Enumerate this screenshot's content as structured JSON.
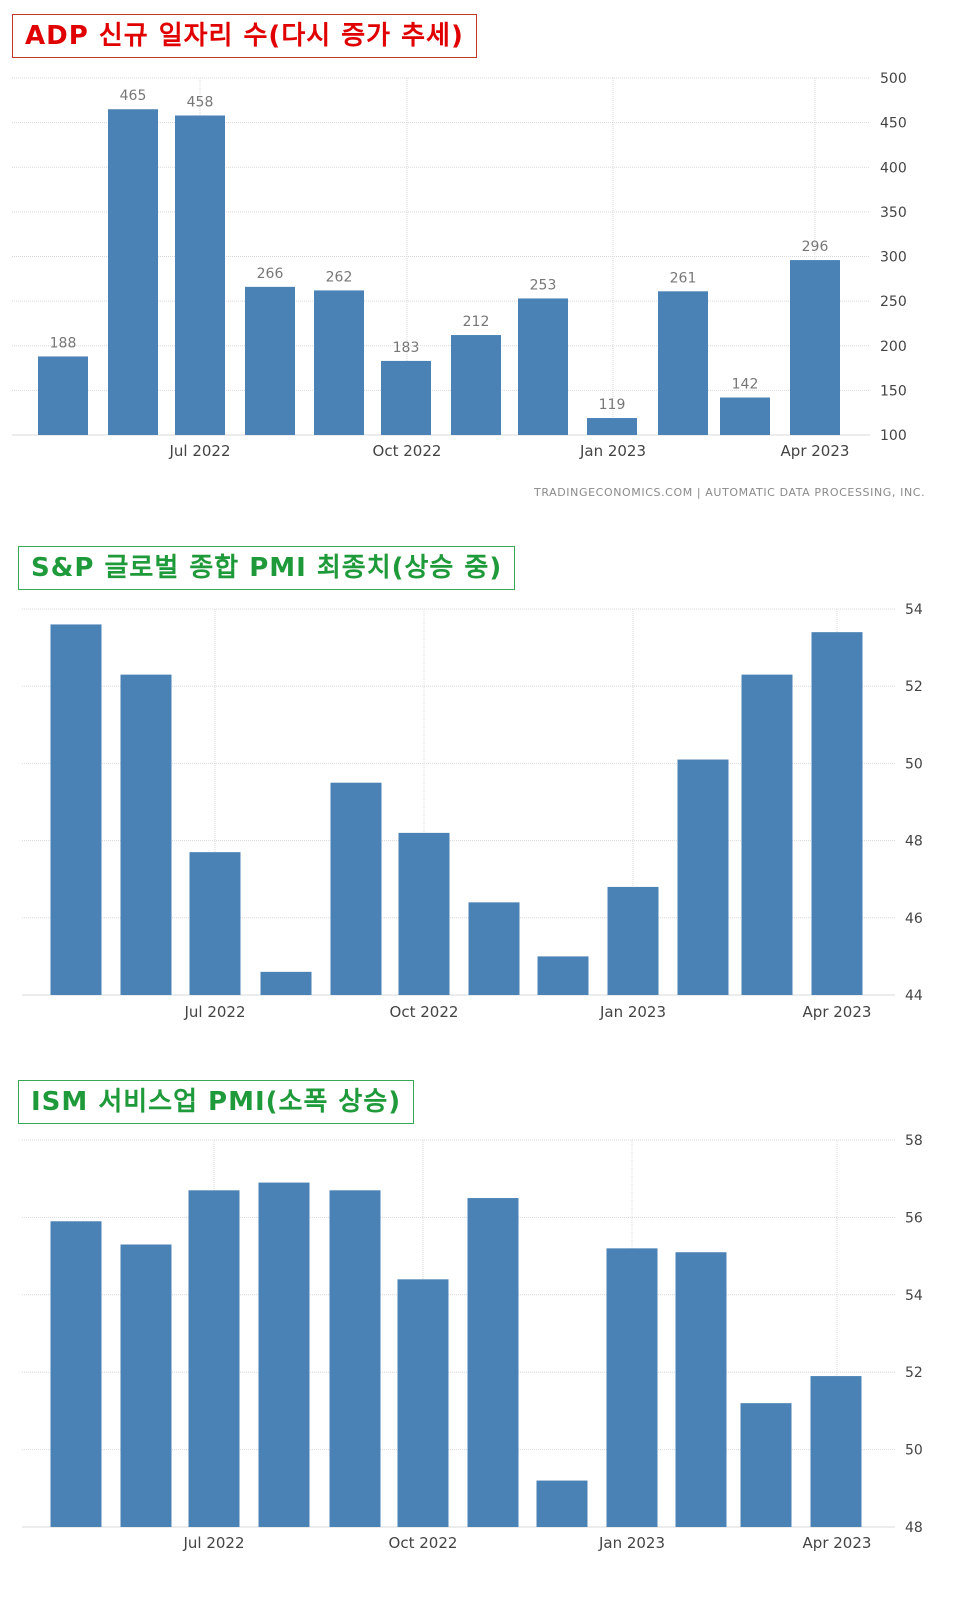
{
  "colors": {
    "bar": "#4a82b5",
    "grid": "#d9d9d9",
    "axis_text": "#444444",
    "label_text": "#777777",
    "title_red": "#e00000",
    "title_green": "#1f9a3a"
  },
  "source_note": "TRADINGECONOMICS.COM  |  AUTOMATIC DATA PROCESSING, INC.",
  "chart_data": [
    {
      "type": "bar",
      "title": "ADP 신규 일자리 수(다시 증가 추세)",
      "xticks": [
        "Jul 2022",
        "Oct 2022",
        "Jan 2023",
        "Apr 2023"
      ],
      "values": [
        188,
        465,
        458,
        266,
        262,
        183,
        212,
        253,
        119,
        261,
        142,
        296
      ],
      "data_labels": [
        "188",
        "465",
        "458",
        "266",
        "262",
        "183",
        "212",
        "253",
        "119",
        "261",
        "142",
        "296"
      ],
      "ylim": [
        100,
        500
      ],
      "yticks": [
        100,
        150,
        200,
        250,
        300,
        350,
        400,
        450,
        500
      ],
      "grid": true
    },
    {
      "type": "bar",
      "title": "S&P 글로벌 종합 PMI 최종치(상승 중)",
      "xticks": [
        "Jul 2022",
        "Oct 2022",
        "Jan 2023",
        "Apr 2023"
      ],
      "values": [
        53.6,
        52.3,
        47.7,
        44.6,
        49.5,
        48.2,
        46.4,
        45.0,
        46.8,
        50.1,
        52.3,
        53.4
      ],
      "ylim": [
        44,
        54
      ],
      "yticks": [
        44,
        46,
        48,
        50,
        52,
        54
      ],
      "grid": true
    },
    {
      "type": "bar",
      "title": "ISM 서비스업 PMI(소폭 상승)",
      "xticks": [
        "Jul 2022",
        "Oct 2022",
        "Jan 2023",
        "Apr 2023"
      ],
      "values": [
        55.9,
        55.3,
        56.7,
        56.9,
        56.7,
        54.4,
        56.5,
        49.2,
        55.2,
        55.1,
        51.2,
        51.9
      ],
      "ylim": [
        48,
        58
      ],
      "yticks": [
        48,
        50,
        52,
        54,
        56,
        58
      ],
      "grid": true
    }
  ]
}
